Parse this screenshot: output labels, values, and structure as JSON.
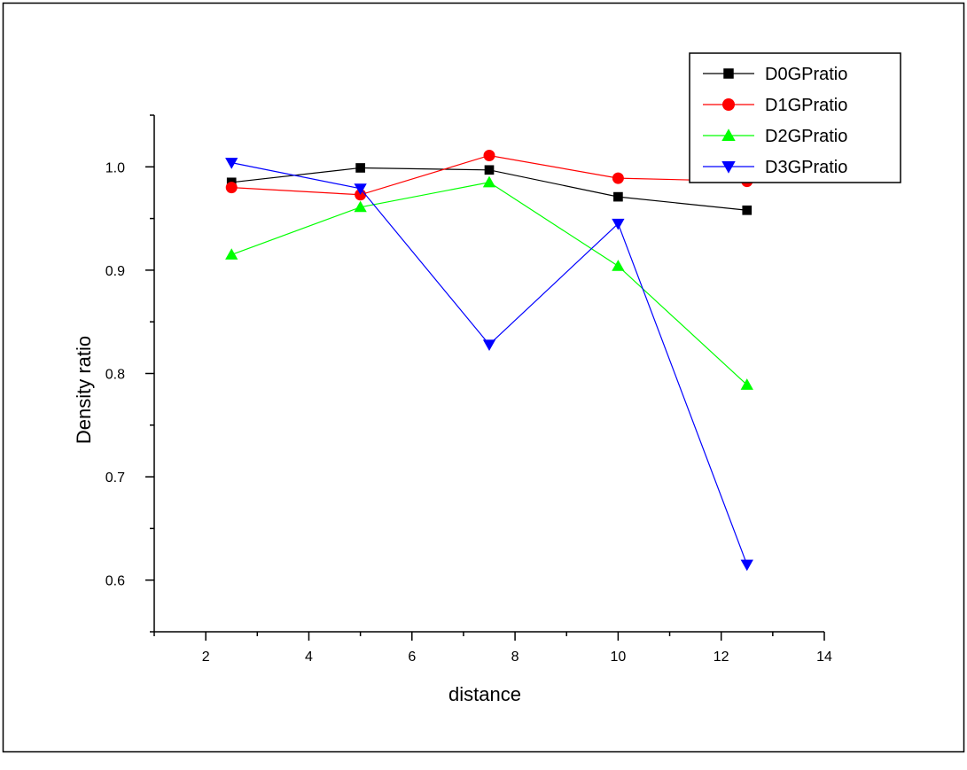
{
  "chart_data": {
    "type": "line",
    "title": "",
    "xlabel": "distance",
    "ylabel": "Density ratio",
    "xlim": [
      1,
      14
    ],
    "ylim": [
      0.55,
      1.05
    ],
    "x_major_ticks": [
      2,
      4,
      6,
      8,
      10,
      12,
      14
    ],
    "x_tick_labels": [
      "2",
      "4",
      "6",
      "8",
      "10",
      "12",
      "14"
    ],
    "x_minor_ticks": [
      1,
      3,
      5,
      7,
      9,
      11,
      13
    ],
    "y_major_ticks": [
      0.6,
      0.7,
      0.8,
      0.9,
      1.0
    ],
    "y_tick_labels": [
      "0.6",
      "0.7",
      "0.8",
      "0.9",
      "1.0"
    ],
    "y_minor_ticks": [
      0.55,
      0.65,
      0.75,
      0.85,
      0.95,
      1.05
    ],
    "grid": false,
    "legend_position": "top-right",
    "x": [
      2.5,
      5,
      7.5,
      10,
      12.5
    ],
    "series": [
      {
        "name": "D0GPratio",
        "color": "#000000",
        "marker": "square",
        "values": [
          0.985,
          0.999,
          0.997,
          0.971,
          0.958
        ]
      },
      {
        "name": "D1GPratio",
        "color": "#ff0000",
        "marker": "circle",
        "values": [
          0.98,
          0.973,
          1.011,
          0.989,
          0.986
        ]
      },
      {
        "name": "D2GPratio",
        "color": "#00ff00",
        "marker": "triangle-up",
        "values": [
          0.915,
          0.961,
          0.985,
          0.904,
          0.789
        ]
      },
      {
        "name": "D3GPratio",
        "color": "#0000ff",
        "marker": "triangle-down",
        "values": [
          1.004,
          0.979,
          0.828,
          0.945,
          0.615
        ]
      }
    ]
  }
}
